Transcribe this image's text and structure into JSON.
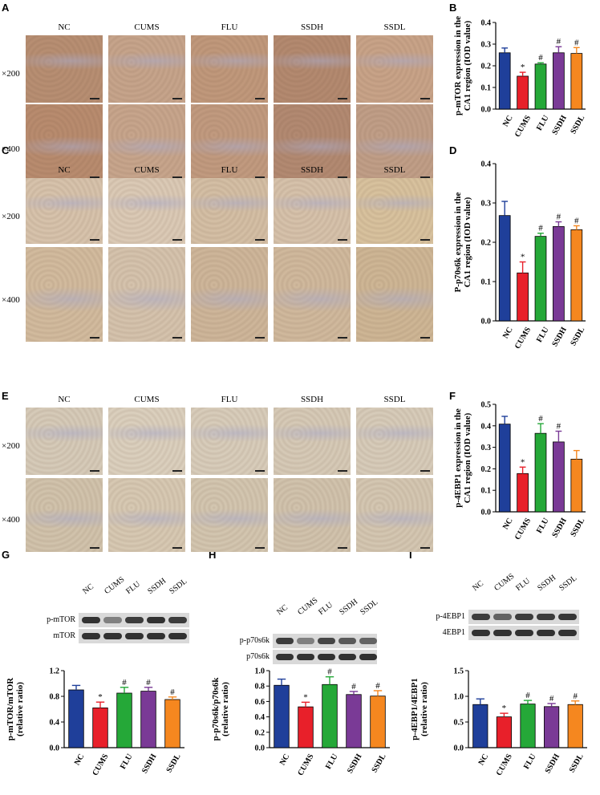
{
  "groups": [
    "NC",
    "CUMS",
    "FLU",
    "SSDH",
    "SSDL"
  ],
  "colors": {
    "NC": "#1f3f9a",
    "CUMS": "#e8202a",
    "FLU": "#25a838",
    "SSDH": "#7a3a96",
    "SSDL": "#f5871f"
  },
  "magnifications": {
    "low": "×200",
    "high": "×400"
  },
  "panels": {
    "A": {
      "label": "A"
    },
    "B": {
      "label": "B"
    },
    "C": {
      "label": "C"
    },
    "D": {
      "label": "D"
    },
    "E": {
      "label": "E"
    },
    "F": {
      "label": "F"
    },
    "G": {
      "label": "G"
    },
    "H": {
      "label": "H"
    },
    "I": {
      "label": "I"
    }
  },
  "micrograph_tints": {
    "A": {
      "low": [
        "#b88f73",
        "#c7a58c",
        "#c1997c",
        "#b48a70",
        "#c9a489"
      ],
      "high": [
        "#b98c6f",
        "#c8a68d",
        "#c29b80",
        "#b38a72",
        "#c19f88"
      ]
    },
    "C": {
      "low": [
        "#d8c4ad",
        "#dccbb7",
        "#d5c0a6",
        "#d7c3ac",
        "#d9c39f"
      ],
      "high": [
        "#d3bc9f",
        "#d6c4ae",
        "#cfb79b",
        "#d1ba9e",
        "#cfb796"
      ]
    },
    "E": {
      "low": [
        "#d7ccba",
        "#dcd1bf",
        "#d9cebc",
        "#d7cbb8",
        "#d8cdbb"
      ],
      "high": [
        "#d2c4ad",
        "#d8cab4",
        "#d4c7b1",
        "#d2c4ae",
        "#d5c8b3"
      ]
    }
  },
  "blots": {
    "G": {
      "bands": [
        "p-mTOR",
        "mTOR"
      ]
    },
    "H": {
      "bands": [
        "p-p70s6k",
        "p70s6k"
      ]
    },
    "I": {
      "bands": [
        "p-4EBP1",
        "4EBP1"
      ]
    }
  },
  "chart_data": [
    {
      "id": "B",
      "type": "bar",
      "categories": [
        "NC",
        "CUMS",
        "FLU",
        "SSDH",
        "SSDL"
      ],
      "values": [
        0.26,
        0.152,
        0.208,
        0.26,
        0.257
      ],
      "errors": [
        0.022,
        0.018,
        0.006,
        0.028,
        0.027
      ],
      "markers": [
        "",
        "*",
        "#",
        "#",
        "#"
      ],
      "ylabel_lines": [
        "p-mTOR expression in the",
        "CA1 region (IOD value)"
      ],
      "ylim": [
        0,
        0.4
      ],
      "yticks": [
        "0.0",
        "0.1",
        "0.2",
        "0.3",
        "0.4"
      ]
    },
    {
      "id": "D",
      "type": "bar",
      "categories": [
        "NC",
        "CUMS",
        "FLU",
        "SSDH",
        "SSDL"
      ],
      "values": [
        0.268,
        0.122,
        0.215,
        0.24,
        0.232
      ],
      "errors": [
        0.036,
        0.028,
        0.008,
        0.012,
        0.01
      ],
      "markers": [
        "",
        "*",
        "#",
        "#",
        "#"
      ],
      "ylabel_lines": [
        "P-p70s6k expression in the",
        "CA1 region (IOD value)"
      ],
      "ylim": [
        0,
        0.4
      ],
      "yticks": [
        "0.0",
        "0.1",
        "0.2",
        "0.3",
        "0.4"
      ]
    },
    {
      "id": "F",
      "type": "bar",
      "categories": [
        "NC",
        "CUMS",
        "FLU",
        "SSDH",
        "SSDL"
      ],
      "values": [
        0.408,
        0.178,
        0.365,
        0.325,
        0.245
      ],
      "errors": [
        0.036,
        0.03,
        0.045,
        0.05,
        0.04
      ],
      "markers": [
        "",
        "*",
        "#",
        "#",
        ""
      ],
      "ylabel_lines": [
        "p-4EBP1 expression in the",
        "CA1 region (IOD value)"
      ],
      "ylim": [
        0,
        0.5
      ],
      "yticks": [
        "0.0",
        "0.1",
        "0.2",
        "0.3",
        "0.4",
        "0.5"
      ]
    },
    {
      "id": "G",
      "type": "bar",
      "categories": [
        "NC",
        "CUMS",
        "FLU",
        "SSDH",
        "SSDL"
      ],
      "values": [
        0.9,
        0.62,
        0.85,
        0.88,
        0.75
      ],
      "errors": [
        0.07,
        0.09,
        0.09,
        0.06,
        0.04
      ],
      "markers": [
        "",
        "*",
        "#",
        "#",
        "#"
      ],
      "ylabel_lines": [
        "p-mTOR/mTOR",
        "(relative ratio)"
      ],
      "ylim": [
        0,
        1.2
      ],
      "yticks": [
        "0.0",
        "0.4",
        "0.8",
        "1.2"
      ]
    },
    {
      "id": "H",
      "type": "bar",
      "categories": [
        "NC",
        "CUMS",
        "FLU",
        "SSDH",
        "SSDL"
      ],
      "values": [
        0.81,
        0.53,
        0.82,
        0.69,
        0.67
      ],
      "errors": [
        0.08,
        0.06,
        0.1,
        0.04,
        0.07
      ],
      "markers": [
        "",
        "*",
        "#",
        "#",
        "#"
      ],
      "ylabel_lines": [
        "p-p70s6k/p70s6k",
        "(relative ratio)"
      ],
      "ylim": [
        0,
        1.0
      ],
      "yticks": [
        "0.0",
        "0.2",
        "0.4",
        "0.6",
        "0.8",
        "1.0"
      ]
    },
    {
      "id": "I",
      "type": "bar",
      "categories": [
        "NC",
        "CUMS",
        "FLU",
        "SSDH",
        "SSDL"
      ],
      "values": [
        0.84,
        0.6,
        0.85,
        0.8,
        0.84
      ],
      "errors": [
        0.11,
        0.07,
        0.07,
        0.06,
        0.07
      ],
      "markers": [
        "",
        "*",
        "#",
        "#",
        "#"
      ],
      "ylabel_lines": [
        "p-4EBP1/4EBP1",
        "(relative ratio)"
      ],
      "ylim": [
        0,
        1.5
      ],
      "yticks": [
        "0.0",
        "0.5",
        "1.0",
        "1.5"
      ]
    }
  ]
}
